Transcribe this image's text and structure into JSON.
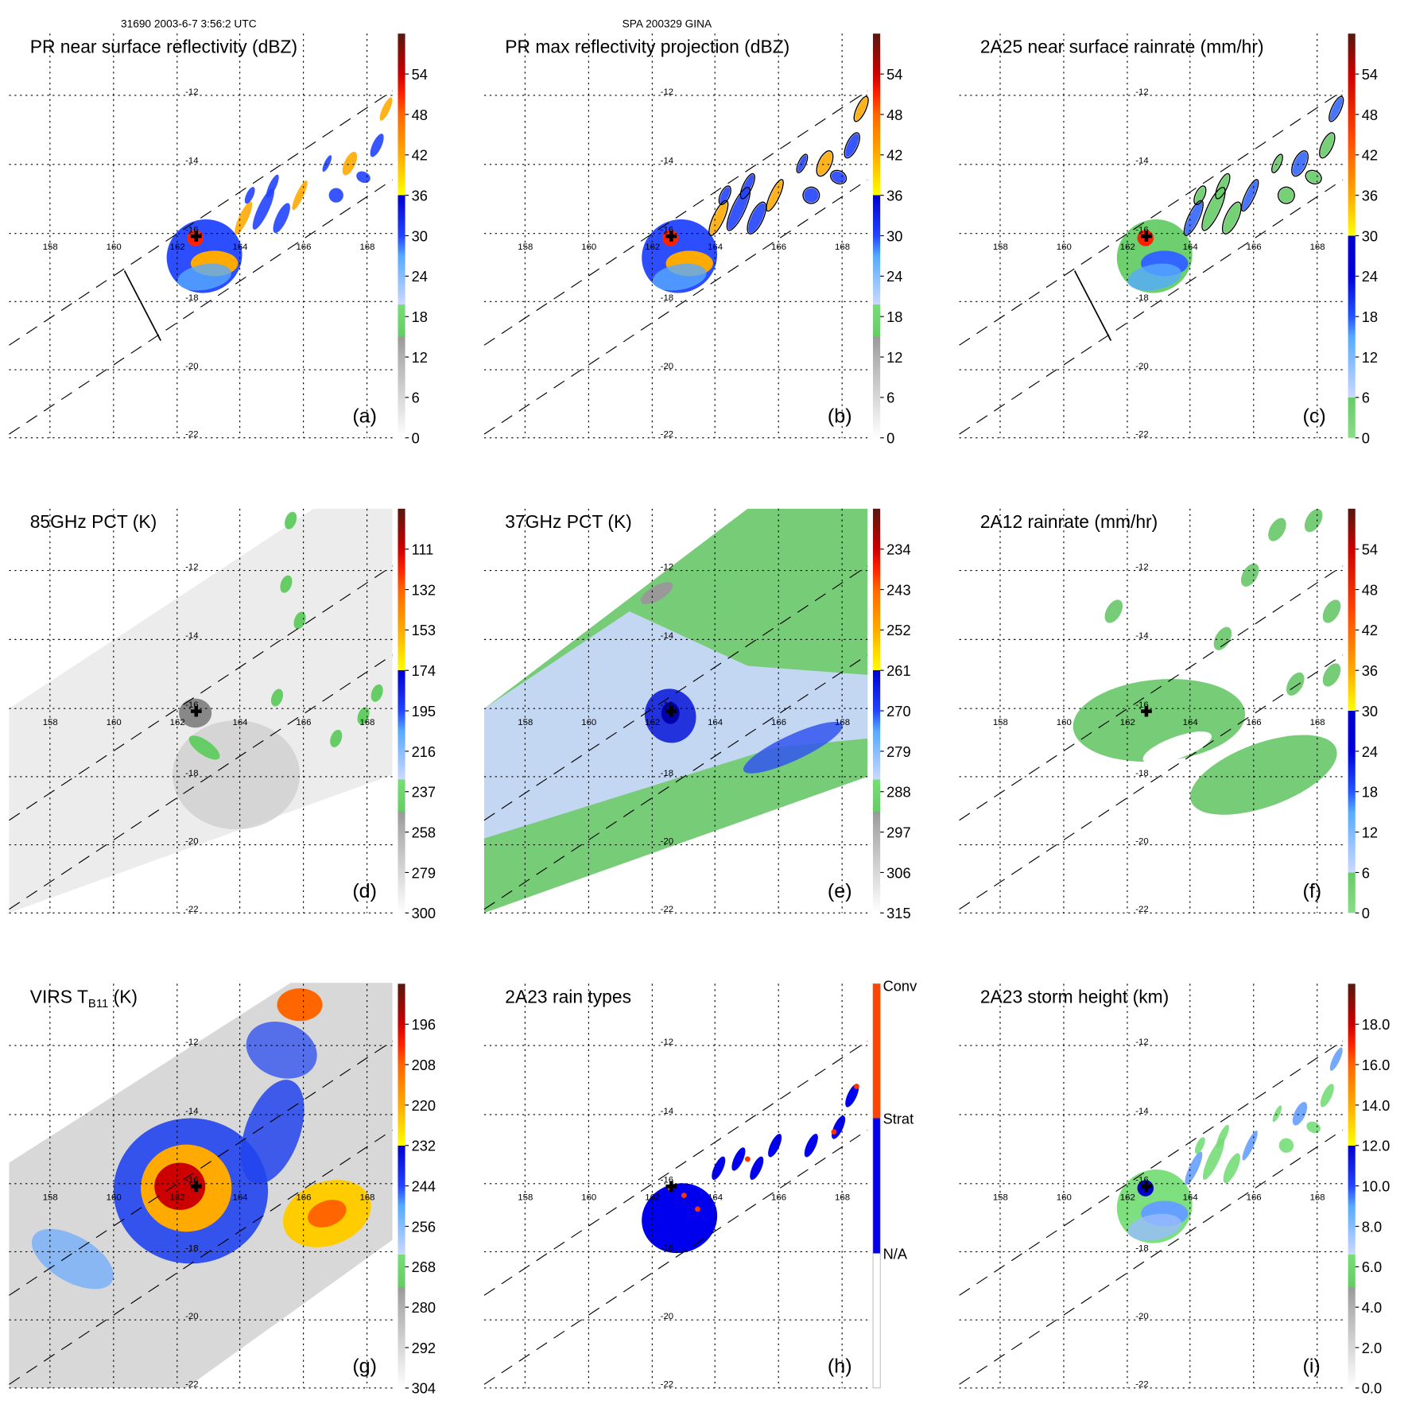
{
  "header": {
    "left": "31690 2003-6-7 3:56:2 UTC",
    "center": "SPA 200329 GINA"
  },
  "chart_data": {
    "type": "heatmap",
    "lon_ticks": [
      "158",
      "160",
      "162",
      "164",
      "166",
      "168"
    ],
    "lat_ticks": [
      "-12",
      "-14",
      "-16",
      "-18",
      "-20",
      "-22"
    ],
    "storm_center": {
      "lon": 162.5,
      "lat": -16.1
    },
    "schemes": {
      "A": [
        [
          0,
          "#ffffff"
        ],
        [
          2,
          "#b0b0b0"
        ],
        [
          2.5,
          "#999999"
        ],
        [
          2.5,
          "#66cc66"
        ],
        [
          3.3,
          "#77dd77"
        ],
        [
          3.3,
          "#ccd8ff"
        ],
        [
          4.5,
          "#55aaff"
        ],
        [
          5,
          "#2244ff"
        ],
        [
          6,
          "#0000cc"
        ],
        [
          6,
          "#ffff00"
        ],
        [
          7,
          "#ffaa00"
        ],
        [
          8,
          "#ff6600"
        ],
        [
          8.5,
          "#ff2200"
        ],
        [
          9,
          "#cc0000"
        ],
        [
          10,
          "#551810"
        ]
      ],
      "C": [
        [
          0,
          "#88dd88"
        ],
        [
          1,
          "#66cc66"
        ],
        [
          1,
          "#ccd8ff"
        ],
        [
          2.5,
          "#55aaff"
        ],
        [
          3,
          "#2255ff"
        ],
        [
          4,
          "#0000dd"
        ],
        [
          5,
          "#0000cc"
        ],
        [
          5,
          "#ffff00"
        ],
        [
          6,
          "#ffaa00"
        ],
        [
          7.5,
          "#ff4400"
        ],
        [
          9,
          "#cc0000"
        ],
        [
          10,
          "#551810"
        ]
      ],
      "H": [
        [
          0,
          "#ffffff"
        ],
        [
          3.33,
          "#ffffff"
        ],
        [
          3.33,
          "#0000ee"
        ],
        [
          6.67,
          "#0000ee"
        ],
        [
          6.67,
          "#ff4400"
        ],
        [
          10,
          "#ff4400"
        ]
      ]
    },
    "panels": [
      {
        "title": "PR near surface reflectivity (dBZ)",
        "letter": "(a)",
        "scheme": "A",
        "ticks": [
          "0",
          "6",
          "12",
          "18",
          "24",
          "30",
          "36",
          "42",
          "48",
          "54"
        ]
      },
      {
        "title": "PR max reflectivity projection (dBZ)",
        "letter": "(b)",
        "scheme": "A",
        "ticks": [
          "0",
          "6",
          "12",
          "18",
          "24",
          "30",
          "36",
          "42",
          "48",
          "54"
        ]
      },
      {
        "title": "2A25 near surface rainrate (mm/hr)",
        "letter": "(c)",
        "scheme": "C",
        "ticks": [
          "0",
          "6",
          "12",
          "18",
          "24",
          "30",
          "36",
          "42",
          "48",
          "54"
        ]
      },
      {
        "title": "85GHz PCT (K)",
        "letter": "(d)",
        "scheme": "A",
        "ticks": [
          "300",
          "279",
          "258",
          "237",
          "216",
          "195",
          "174",
          "153",
          "132",
          "111"
        ]
      },
      {
        "title": "37GHz PCT (K)",
        "letter": "(e)",
        "scheme": "A",
        "ticks": [
          "315",
          "306",
          "297",
          "288",
          "279",
          "270",
          "261",
          "252",
          "243",
          "234"
        ]
      },
      {
        "title": "2A12 rainrate (mm/hr)",
        "letter": "(f)",
        "scheme": "C",
        "ticks": [
          "0",
          "6",
          "12",
          "18",
          "24",
          "30",
          "36",
          "42",
          "48",
          "54"
        ]
      },
      {
        "title": "VIRS T",
        "title_sub": "B11",
        "title_end": " (K)",
        "letter": "(g)",
        "scheme": "A",
        "ticks": [
          "304",
          "292",
          "280",
          "268",
          "256",
          "244",
          "232",
          "220",
          "208",
          "196"
        ]
      },
      {
        "title": "2A23 rain types",
        "letter": "(h)",
        "scheme": "H",
        "ticks": [
          "N/A",
          "Strat",
          "Conv"
        ]
      },
      {
        "title": "2A23 storm height (km)",
        "letter": "(i)",
        "scheme": "A",
        "ticks": [
          "0.0",
          "2.0",
          "4.0",
          "6.0",
          "8.0",
          "10.0",
          "12.0",
          "14.0",
          "16.0",
          "18.0"
        ]
      }
    ]
  }
}
